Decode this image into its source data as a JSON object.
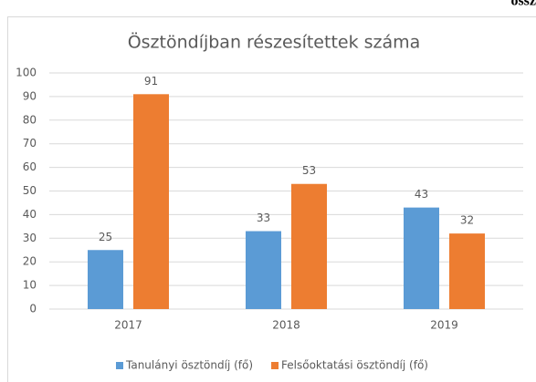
{
  "header_fragment": "össz",
  "chart_data": {
    "type": "bar",
    "title": "Ösztöndíjban részesítettek száma",
    "categories": [
      "2017",
      "2018",
      "2019"
    ],
    "series": [
      {
        "name": "Tanulányi ösztöndíj (fő)",
        "color": "#5b9bd5",
        "values": [
          25,
          33,
          43
        ]
      },
      {
        "name": "Felsőoktatási ösztöndíj (fő)",
        "color": "#ed7d31",
        "values": [
          91,
          53,
          32
        ]
      }
    ],
    "ylim": [
      0,
      100
    ],
    "yticks": [
      0,
      10,
      20,
      30,
      40,
      50,
      60,
      70,
      80,
      90,
      100
    ],
    "grid": true,
    "legend": "bottom"
  }
}
